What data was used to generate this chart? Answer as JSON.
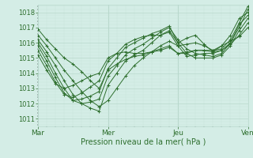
{
  "xlabel": "Pression niveau de la mer( hPa )",
  "bg_color": "#d4ede6",
  "grid_major_color": "#b8d8cc",
  "grid_minor_color": "#c8e4da",
  "line_color": "#2d6e2d",
  "xlim": [
    0,
    72
  ],
  "ylim": [
    1010.5,
    1018.5
  ],
  "yticks": [
    1011,
    1012,
    1013,
    1014,
    1015,
    1016,
    1017,
    1018
  ],
  "xtick_positions": [
    0,
    24,
    48,
    72
  ],
  "xtick_labels": [
    "Mar",
    "Mer",
    "Jeu",
    "Ven"
  ],
  "series": [
    [
      0,
      1016.9,
      3,
      1016.2,
      6,
      1015.6,
      9,
      1015.0,
      12,
      1014.6,
      15,
      1014.1,
      18,
      1013.5,
      21,
      1013.0,
      24,
      1014.2,
      27,
      1014.6,
      30,
      1014.9,
      33,
      1015.1,
      36,
      1015.2,
      39,
      1015.4,
      42,
      1015.6,
      45,
      1015.8,
      48,
      1015.3,
      51,
      1015.4,
      54,
      1015.5,
      57,
      1015.5,
      60,
      1015.4,
      63,
      1015.5,
      66,
      1016.0,
      69,
      1017.0,
      72,
      1018.2
    ],
    [
      0,
      1016.5,
      3,
      1015.8,
      6,
      1015.0,
      9,
      1014.2,
      12,
      1013.5,
      15,
      1012.8,
      18,
      1012.2,
      21,
      1011.8,
      24,
      1012.2,
      27,
      1013.0,
      30,
      1013.8,
      33,
      1014.5,
      36,
      1015.0,
      39,
      1015.4,
      42,
      1015.8,
      45,
      1016.1,
      48,
      1015.8,
      51,
      1015.9,
      54,
      1016.0,
      57,
      1015.8,
      60,
      1015.5,
      63,
      1015.6,
      66,
      1016.2,
      69,
      1017.3,
      72,
      1018.4
    ],
    [
      0,
      1016.2,
      3,
      1015.4,
      6,
      1014.5,
      9,
      1013.5,
      12,
      1012.6,
      15,
      1012.0,
      18,
      1011.7,
      21,
      1011.5,
      24,
      1013.2,
      27,
      1014.0,
      30,
      1014.8,
      33,
      1015.2,
      36,
      1015.5,
      39,
      1016.0,
      42,
      1016.5,
      45,
      1016.8,
      48,
      1016.0,
      51,
      1016.3,
      54,
      1016.5,
      57,
      1015.9,
      60,
      1015.4,
      63,
      1015.8,
      66,
      1016.5,
      69,
      1017.6,
      72,
      1018.0
    ],
    [
      0,
      1016.0,
      3,
      1015.1,
      6,
      1014.0,
      9,
      1013.0,
      12,
      1012.2,
      15,
      1012.0,
      18,
      1012.1,
      21,
      1012.3,
      24,
      1013.8,
      27,
      1014.5,
      30,
      1015.2,
      33,
      1015.6,
      36,
      1015.9,
      39,
      1016.3,
      42,
      1016.7,
      45,
      1017.0,
      48,
      1016.2,
      51,
      1015.6,
      54,
      1015.3,
      57,
      1015.2,
      60,
      1015.1,
      63,
      1015.3,
      66,
      1016.0,
      69,
      1017.2,
      72,
      1017.8
    ],
    [
      0,
      1015.8,
      3,
      1014.8,
      6,
      1013.7,
      9,
      1012.7,
      12,
      1012.2,
      15,
      1012.3,
      18,
      1012.5,
      21,
      1012.8,
      24,
      1014.3,
      27,
      1015.0,
      30,
      1015.7,
      33,
      1016.0,
      36,
      1016.3,
      39,
      1016.6,
      42,
      1016.8,
      45,
      1017.1,
      48,
      1016.0,
      51,
      1015.3,
      54,
      1015.0,
      57,
      1015.0,
      60,
      1015.0,
      63,
      1015.2,
      66,
      1015.8,
      69,
      1016.8,
      72,
      1017.6
    ],
    [
      0,
      1015.5,
      3,
      1014.5,
      6,
      1013.4,
      9,
      1012.6,
      12,
      1012.4,
      15,
      1012.7,
      18,
      1013.1,
      21,
      1013.5,
      24,
      1014.8,
      27,
      1015.3,
      30,
      1015.9,
      33,
      1016.2,
      36,
      1016.4,
      39,
      1016.5,
      42,
      1016.5,
      45,
      1016.7,
      48,
      1015.8,
      51,
      1015.1,
      54,
      1015.2,
      57,
      1015.3,
      60,
      1015.3,
      63,
      1015.5,
      66,
      1015.9,
      69,
      1016.5,
      72,
      1017.3
    ],
    [
      0,
      1015.2,
      3,
      1014.2,
      6,
      1013.3,
      9,
      1013.0,
      12,
      1013.2,
      15,
      1013.5,
      18,
      1013.8,
      21,
      1014.0,
      24,
      1015.0,
      27,
      1015.3,
      30,
      1015.4,
      33,
      1015.3,
      36,
      1015.3,
      39,
      1015.4,
      42,
      1015.5,
      45,
      1015.7,
      48,
      1015.3,
      51,
      1015.3,
      54,
      1015.5,
      57,
      1015.5,
      60,
      1015.5,
      63,
      1015.8,
      66,
      1016.1,
      69,
      1016.4,
      72,
      1017.0
    ]
  ]
}
